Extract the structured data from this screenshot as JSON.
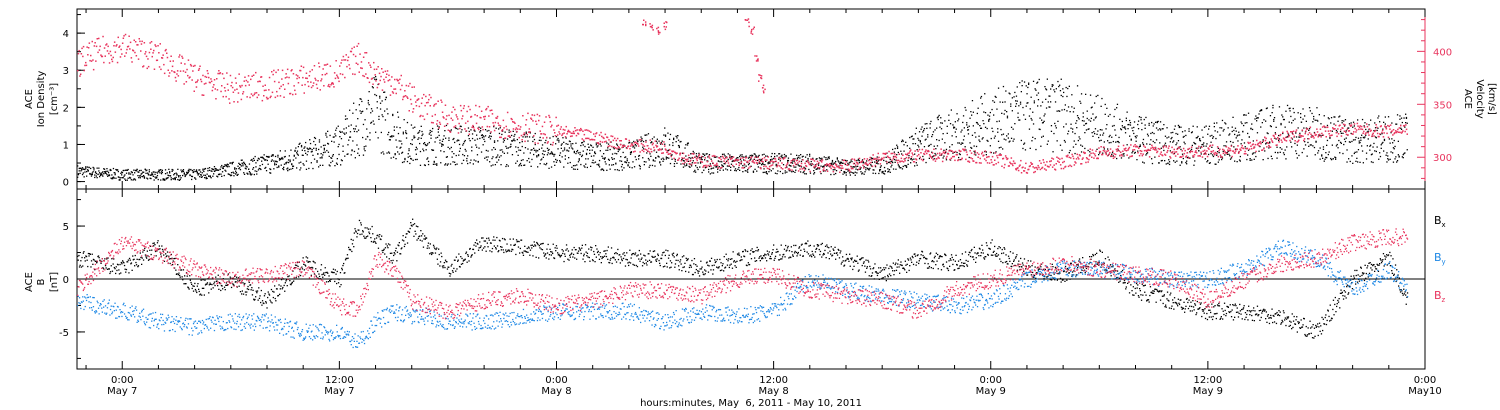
{
  "colors": {
    "axis": "#000000",
    "density": "#000000",
    "velocity": "#e8355e",
    "bx": "#000000",
    "by": "#1e88e5",
    "bz": "#e8355e"
  },
  "chart_data": [
    {
      "type": "scatter",
      "panel": "top",
      "ylabel": [
        "ACE",
        "Ion Density",
        "[cm⁻³]"
      ],
      "ylabel2": [
        "ACE",
        "Velocity",
        "[km/s]"
      ],
      "ylim": [
        -0.2,
        4.65
      ],
      "ylim2": [
        270,
        440
      ],
      "yticks": [
        0,
        1,
        2,
        3,
        4
      ],
      "yticks2": [
        300,
        350,
        400
      ],
      "series": [
        {
          "key": "density",
          "axis": "left",
          "x": [
            -2.5,
            0,
            2,
            4,
            6,
            8,
            10,
            12,
            13,
            14,
            15,
            16,
            18,
            20,
            22,
            24,
            26,
            28,
            30,
            32,
            34,
            36,
            38,
            40,
            42,
            44,
            46,
            48,
            50,
            52,
            54,
            56,
            58,
            60,
            62,
            64,
            66,
            68,
            70,
            71
          ],
          "y": [
            0.3,
            0.2,
            0.2,
            0.2,
            0.35,
            0.5,
            0.7,
            1.0,
            1.5,
            1.9,
            1.3,
            1.0,
            1.0,
            1.0,
            0.9,
            0.8,
            0.7,
            0.7,
            1.0,
            0.5,
            0.5,
            0.5,
            0.5,
            0.4,
            0.45,
            1.0,
            1.3,
            1.6,
            1.8,
            1.8,
            1.5,
            1.2,
            1.0,
            1.0,
            1.2,
            1.4,
            1.3,
            1.1,
            1.2,
            1.2
          ]
        },
        {
          "key": "velocity",
          "axis": "right",
          "x": [
            -2.5,
            -1,
            0,
            1,
            2,
            4,
            6,
            8,
            10,
            12,
            13,
            14,
            15,
            16,
            17,
            18,
            20,
            22,
            24,
            26,
            28,
            30,
            31,
            32,
            34,
            36,
            38,
            40,
            42,
            44,
            46,
            48,
            50,
            52,
            54,
            56,
            58,
            60,
            62,
            64,
            66,
            68,
            70,
            71
          ],
          "y": [
            390,
            402,
            405,
            400,
            395,
            375,
            365,
            368,
            374,
            380,
            395,
            378,
            372,
            355,
            345,
            338,
            335,
            330,
            325,
            320,
            312,
            310,
            300,
            297,
            296,
            295,
            293,
            292,
            300,
            302,
            303,
            300,
            290,
            296,
            305,
            307,
            306,
            306,
            308,
            318,
            325,
            327,
            325,
            328
          ]
        },
        {
          "key": "velocity-bursts",
          "axis": "right",
          "x": [
            28.8,
            29.2,
            29.6,
            30.0,
            34.5,
            34.8,
            35.0,
            35.2,
            35.4
          ],
          "y": [
            428,
            424,
            420,
            425,
            428,
            420,
            395,
            375,
            365
          ]
        }
      ]
    },
    {
      "type": "line",
      "panel": "bottom",
      "ylabel": [
        "ACE",
        "B",
        "[nT]"
      ],
      "ylim": [
        -8.5,
        8.5
      ],
      "yticks": [
        -5,
        0,
        5
      ],
      "legend": [
        {
          "key": "bx",
          "base": "B",
          "sub": "x"
        },
        {
          "key": "by",
          "base": "B",
          "sub": "y"
        },
        {
          "key": "bz",
          "base": "B",
          "sub": "z"
        }
      ],
      "series": [
        {
          "key": "bx",
          "x": [
            -2.5,
            0,
            2,
            4,
            6,
            8,
            10,
            12,
            13,
            14,
            15,
            16,
            17,
            18,
            20,
            22,
            24,
            26,
            28,
            30,
            32,
            34,
            36,
            38,
            40,
            42,
            44,
            46,
            48,
            50,
            52,
            54,
            56,
            58,
            60,
            62,
            64,
            66,
            68,
            70,
            71
          ],
          "y": [
            2.0,
            1.0,
            3.0,
            -1.0,
            0.0,
            -2.0,
            1.5,
            0.0,
            5.0,
            4.0,
            2.0,
            5.0,
            3.0,
            1.0,
            3.5,
            3.0,
            2.5,
            2.5,
            2.0,
            2.0,
            1.0,
            2.0,
            2.5,
            3.0,
            2.0,
            0.5,
            2.0,
            1.5,
            3.0,
            1.0,
            0.5,
            2.0,
            -1.0,
            -2.0,
            -3.0,
            -3.0,
            -3.5,
            -5.0,
            0.0,
            2.0,
            -2.0
          ]
        },
        {
          "key": "by",
          "x": [
            -2.5,
            0,
            2,
            4,
            6,
            8,
            10,
            12,
            13,
            14,
            15,
            16,
            17,
            18,
            20,
            22,
            24,
            26,
            28,
            30,
            32,
            34,
            36,
            38,
            40,
            42,
            44,
            46,
            48,
            50,
            52,
            54,
            56,
            58,
            60,
            62,
            64,
            66,
            68,
            70,
            71
          ],
          "y": [
            -2.0,
            -3.0,
            -4.0,
            -4.5,
            -4.0,
            -4.0,
            -5.0,
            -5.0,
            -6.0,
            -4.0,
            -3.0,
            -3.5,
            -3.5,
            -4.0,
            -4.0,
            -3.5,
            -3.0,
            -3.0,
            -3.0,
            -4.0,
            -3.0,
            -3.5,
            -3.0,
            0.0,
            -1.0,
            -1.5,
            -2.0,
            -2.5,
            -2.0,
            0.0,
            1.0,
            1.0,
            0.5,
            0.0,
            0.0,
            1.0,
            3.0,
            2.0,
            -1.0,
            1.0,
            -1.0
          ]
        },
        {
          "key": "bz",
          "x": [
            -2.5,
            0,
            2,
            4,
            6,
            8,
            10,
            12,
            13,
            14,
            15,
            16,
            17,
            18,
            20,
            22,
            24,
            26,
            28,
            30,
            32,
            34,
            36,
            38,
            40,
            42,
            44,
            46,
            48,
            50,
            52,
            54,
            56,
            58,
            60,
            62,
            64,
            66,
            68,
            70,
            71
          ],
          "y": [
            -1.0,
            3.5,
            2.5,
            1.0,
            0.0,
            0.5,
            1.0,
            -2.5,
            -3.0,
            2.0,
            1.0,
            -2.0,
            -2.5,
            -3.0,
            -2.0,
            -1.5,
            -2.5,
            -2.0,
            -1.0,
            -1.0,
            -1.5,
            0.0,
            0.5,
            -1.0,
            -1.5,
            -2.0,
            -3.0,
            -1.0,
            0.0,
            1.0,
            1.5,
            1.0,
            0.5,
            0.0,
            -2.0,
            0.0,
            1.5,
            2.0,
            3.5,
            4.0,
            4.0
          ]
        }
      ]
    }
  ],
  "xaxis": {
    "xlim": [
      -2.5,
      72
    ],
    "ticks": [
      {
        "x": 0,
        "time": "0:00",
        "date": "May 7"
      },
      {
        "x": 12,
        "time": "12:00",
        "date": "May 7"
      },
      {
        "x": 24,
        "time": "0:00",
        "date": "May 8"
      },
      {
        "x": 36,
        "time": "12:00",
        "date": "May 8"
      },
      {
        "x": 48,
        "time": "0:00",
        "date": "May 9"
      },
      {
        "x": 60,
        "time": "12:00",
        "date": "May 9"
      },
      {
        "x": 72,
        "time": "0:00",
        "date": "May10"
      }
    ],
    "label": "hours:minutes, May  6, 2011 - May 10, 2011"
  }
}
